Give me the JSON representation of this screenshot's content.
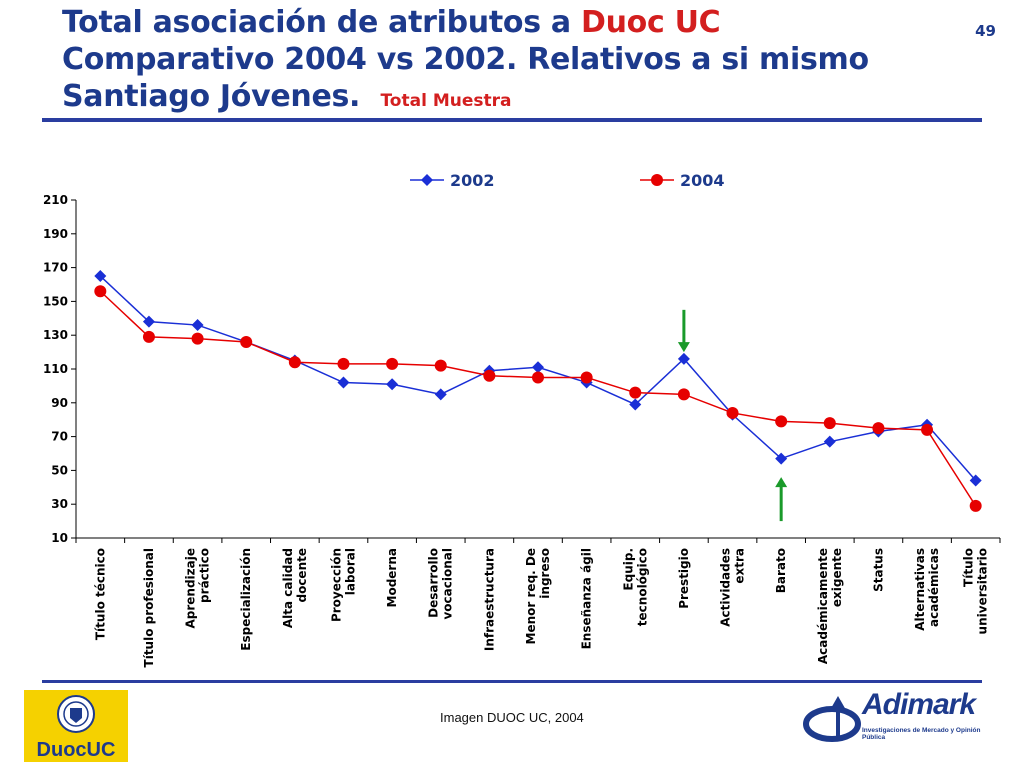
{
  "header": {
    "title_line1_prefix": "Total asociación de atributos a ",
    "title_line1_brand": "Duoc UC",
    "title_line2": "Comparativo 2004 vs 2002. Relativos a si mismo",
    "title_line3": "Santiago Jóvenes",
    "title_line3_punct": ".",
    "subtitle": "Total Muestra",
    "page_number": "49"
  },
  "footer": {
    "caption": "Imagen DUOC UC, 2004",
    "left_logo_text": "DuocUC",
    "right_logo_text": "Adimark",
    "right_logo_tagline": "Investigaciones de Mercado y Opinión Pública"
  },
  "colors": {
    "title": "#1d3a8c",
    "accent": "#d31f1f",
    "series_2002": "#1a2fd6",
    "series_2004": "#e60000",
    "arrow": "#1a9a2a",
    "rule": "#2a3da0"
  },
  "chart_data": {
    "type": "line",
    "title": "",
    "xlabel": "",
    "ylabel": "",
    "ylim": [
      10,
      210
    ],
    "yticks": [
      10,
      30,
      50,
      70,
      90,
      110,
      130,
      150,
      170,
      190,
      210
    ],
    "grid": false,
    "legend_position": "top",
    "categories": [
      "Título técnico",
      "Título profesional",
      "Aprendizaje práctico",
      "Especialización",
      "Alta calidad docente",
      "Proyección laboral",
      "Moderna",
      "Desarrollo vocacional",
      "Infraestructura",
      "Menor req. De ingreso",
      "Enseñanza ágil",
      "Equip. tecnológico",
      "Prestigio",
      "Actividades extra",
      "Barato",
      "Académicamente exigente",
      "Status",
      "Alternativas académicas",
      "Título universitario"
    ],
    "category_lines": [
      [
        "Título técnico"
      ],
      [
        "Título profesional"
      ],
      [
        "Aprendizaje",
        "práctico"
      ],
      [
        "Especialización"
      ],
      [
        "Alta calidad",
        "docente"
      ],
      [
        "Proyección",
        "laboral"
      ],
      [
        "Moderna"
      ],
      [
        "Desarrollo",
        "vocacional"
      ],
      [
        "Infraestructura"
      ],
      [
        "Menor req. De",
        "ingreso"
      ],
      [
        "Enseñanza ágil"
      ],
      [
        "Equip.",
        "tecnológico"
      ],
      [
        "Prestigio"
      ],
      [
        "Actividades",
        "extra"
      ],
      [
        "Barato"
      ],
      [
        "Académicamente",
        "exigente"
      ],
      [
        "Status"
      ],
      [
        "Alternativas",
        "académicas"
      ],
      [
        "Título",
        "universitario"
      ]
    ],
    "series": [
      {
        "name": "2002",
        "marker": "diamond",
        "values": [
          165,
          138,
          136,
          126,
          115,
          102,
          101,
          95,
          109,
          111,
          102,
          89,
          116,
          83,
          57,
          67,
          73,
          77,
          44
        ]
      },
      {
        "name": "2004",
        "marker": "circle",
        "values": [
          156,
          129,
          128,
          126,
          114,
          113,
          113,
          112,
          106,
          105,
          105,
          96,
          95,
          84,
          79,
          78,
          75,
          74,
          29
        ]
      }
    ],
    "annotations": [
      {
        "type": "arrow-down",
        "category_index": 12,
        "value_from": 145,
        "value_to": 120
      },
      {
        "type": "arrow-up",
        "category_index": 14,
        "value_from": 20,
        "value_to": 46
      }
    ]
  }
}
